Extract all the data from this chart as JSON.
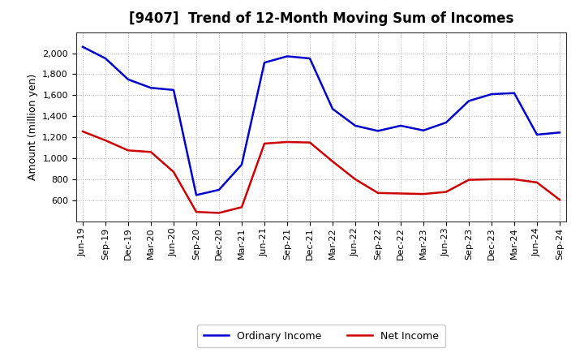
{
  "title": "[9407]  Trend of 12-Month Moving Sum of Incomes",
  "ylabel": "Amount (million yen)",
  "background_color": "#ffffff",
  "plot_background": "#ffffff",
  "grid_color": "#aaaaaa",
  "labels": [
    "Jun-19",
    "Sep-19",
    "Dec-19",
    "Mar-20",
    "Jun-20",
    "Sep-20",
    "Dec-20",
    "Mar-21",
    "Jun-21",
    "Sep-21",
    "Dec-21",
    "Mar-22",
    "Jun-22",
    "Sep-22",
    "Dec-22",
    "Mar-23",
    "Jun-23",
    "Sep-23",
    "Dec-23",
    "Mar-24",
    "Jun-24",
    "Sep-24"
  ],
  "ordinary_income": [
    2060,
    1950,
    1750,
    1670,
    1650,
    650,
    700,
    940,
    1910,
    1970,
    1950,
    1470,
    1310,
    1260,
    1310,
    1265,
    1340,
    1545,
    1610,
    1620,
    1225,
    1245
  ],
  "net_income": [
    1255,
    1170,
    1075,
    1060,
    870,
    490,
    480,
    535,
    1140,
    1155,
    1150,
    970,
    800,
    670,
    665,
    660,
    680,
    795,
    800,
    800,
    770,
    605
  ],
  "ordinary_color": "#0000cc",
  "net_color": "#cc0000",
  "ylim_min": 400,
  "ylim_max": 2200,
  "yticks": [
    600,
    800,
    1000,
    1200,
    1400,
    1600,
    1800,
    2000
  ],
  "legend_ordinary": "Ordinary Income",
  "legend_net": "Net Income",
  "title_fontsize": 12,
  "axis_fontsize": 9,
  "tick_fontsize": 8,
  "line_width": 1.8
}
